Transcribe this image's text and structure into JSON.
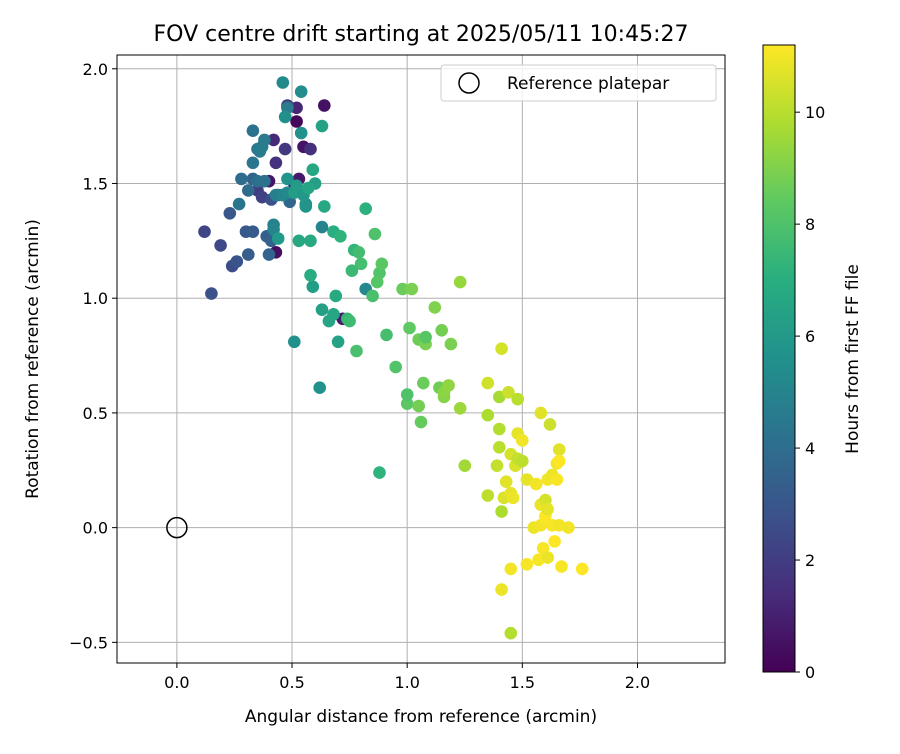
{
  "chart_data": {
    "type": "scatter",
    "title": "FOV centre drift starting at 2025/05/11 10:45:27",
    "xlabel": "Angular distance from reference (arcmin)",
    "ylabel": "Rotation from reference (arcmin)",
    "xlim": [
      -0.26,
      2.38
    ],
    "ylim": [
      -0.59,
      2.06
    ],
    "xticks": [
      "0.0",
      "0.5",
      "1.0",
      "1.5",
      "2.0"
    ],
    "yticks": [
      "−0.5",
      "0.0",
      "0.5",
      "1.0",
      "1.5",
      "2.0"
    ],
    "grid": true,
    "legend": {
      "position": "top-right",
      "entries": [
        "Reference platepar"
      ]
    },
    "reference_point": {
      "x": 0.0,
      "y": 0.0
    },
    "colorbar": {
      "label": "Hours from first FF file",
      "colormap": "viridis",
      "range": [
        0,
        11.2
      ],
      "ticks": [
        "0",
        "2",
        "4",
        "6",
        "8",
        "10"
      ]
    },
    "colormap_stops": [
      "#440154",
      "#472d7b",
      "#3b528b",
      "#2c728e",
      "#21918c",
      "#28ae80",
      "#5ec962",
      "#addc30",
      "#fde725"
    ],
    "series": [
      {
        "points": [
          {
            "x": 0.52,
            "y": 1.77,
            "h": 0.2
          },
          {
            "x": 0.64,
            "y": 1.84,
            "h": 0.5
          },
          {
            "x": 0.51,
            "y": 1.5,
            "h": 0.3
          },
          {
            "x": 0.53,
            "y": 1.52,
            "h": 0.8
          },
          {
            "x": 0.55,
            "y": 1.66,
            "h": 0.6
          },
          {
            "x": 0.46,
            "y": 1.45,
            "h": 1.0
          },
          {
            "x": 0.52,
            "y": 1.83,
            "h": 1.2
          },
          {
            "x": 0.4,
            "y": 1.51,
            "h": 0.7
          },
          {
            "x": 0.43,
            "y": 1.2,
            "h": 0.4
          },
          {
            "x": 0.72,
            "y": 0.91,
            "h": 0.9
          },
          {
            "x": 0.58,
            "y": 1.65,
            "h": 1.5
          },
          {
            "x": 0.47,
            "y": 1.65,
            "h": 1.8
          },
          {
            "x": 0.43,
            "y": 1.59,
            "h": 1.6
          },
          {
            "x": 0.35,
            "y": 1.47,
            "h": 2.0
          },
          {
            "x": 0.42,
            "y": 1.69,
            "h": 1.3
          },
          {
            "x": 0.37,
            "y": 1.44,
            "h": 2.2
          },
          {
            "x": 0.48,
            "y": 1.84,
            "h": 2.0
          },
          {
            "x": 0.12,
            "y": 1.29,
            "h": 2.3
          },
          {
            "x": 0.24,
            "y": 1.14,
            "h": 2.6
          },
          {
            "x": 0.19,
            "y": 1.23,
            "h": 2.5
          },
          {
            "x": 0.15,
            "y": 1.02,
            "h": 2.8
          },
          {
            "x": 0.26,
            "y": 1.16,
            "h": 2.9
          },
          {
            "x": 0.3,
            "y": 1.29,
            "h": 3.1
          },
          {
            "x": 0.23,
            "y": 1.37,
            "h": 3.0
          },
          {
            "x": 0.33,
            "y": 1.29,
            "h": 3.2
          },
          {
            "x": 0.39,
            "y": 1.27,
            "h": 3.4
          },
          {
            "x": 0.41,
            "y": 1.25,
            "h": 3.5
          },
          {
            "x": 0.31,
            "y": 1.19,
            "h": 3.3
          },
          {
            "x": 0.4,
            "y": 1.19,
            "h": 3.6
          },
          {
            "x": 0.44,
            "y": 1.45,
            "h": 3.8
          },
          {
            "x": 0.41,
            "y": 1.43,
            "h": 2.7
          },
          {
            "x": 0.49,
            "y": 1.42,
            "h": 3.7
          },
          {
            "x": 0.31,
            "y": 1.47,
            "h": 3.9
          },
          {
            "x": 0.33,
            "y": 1.52,
            "h": 3.6
          },
          {
            "x": 0.35,
            "y": 1.51,
            "h": 4.1
          },
          {
            "x": 0.38,
            "y": 1.51,
            "h": 4.2
          },
          {
            "x": 0.28,
            "y": 1.52,
            "h": 4.0
          },
          {
            "x": 0.27,
            "y": 1.41,
            "h": 4.3
          },
          {
            "x": 0.33,
            "y": 1.59,
            "h": 4.4
          },
          {
            "x": 0.35,
            "y": 1.65,
            "h": 4.5
          },
          {
            "x": 0.33,
            "y": 1.73,
            "h": 4.2
          },
          {
            "x": 0.36,
            "y": 1.64,
            "h": 4.6
          },
          {
            "x": 0.37,
            "y": 1.66,
            "h": 4.7
          },
          {
            "x": 0.38,
            "y": 1.69,
            "h": 4.6
          },
          {
            "x": 0.43,
            "y": 1.45,
            "h": 4.8
          },
          {
            "x": 0.42,
            "y": 1.32,
            "h": 4.9
          },
          {
            "x": 0.42,
            "y": 1.3,
            "h": 5.0
          },
          {
            "x": 0.46,
            "y": 1.45,
            "h": 5.1
          },
          {
            "x": 0.48,
            "y": 1.46,
            "h": 5.2
          },
          {
            "x": 0.48,
            "y": 1.83,
            "h": 4.6
          },
          {
            "x": 0.46,
            "y": 1.94,
            "h": 5.3
          },
          {
            "x": 0.54,
            "y": 1.9,
            "h": 5.4
          },
          {
            "x": 0.47,
            "y": 1.79,
            "h": 5.5
          },
          {
            "x": 0.54,
            "y": 1.72,
            "h": 5.6
          },
          {
            "x": 0.56,
            "y": 1.41,
            "h": 5.4
          },
          {
            "x": 0.48,
            "y": 1.52,
            "h": 5.7
          },
          {
            "x": 0.44,
            "y": 1.26,
            "h": 6.0
          },
          {
            "x": 0.52,
            "y": 1.49,
            "h": 6.1
          },
          {
            "x": 0.51,
            "y": 1.46,
            "h": 6.2
          },
          {
            "x": 0.55,
            "y": 1.45,
            "h": 5.9
          },
          {
            "x": 0.56,
            "y": 1.4,
            "h": 5.8
          },
          {
            "x": 0.6,
            "y": 1.5,
            "h": 6.3
          },
          {
            "x": 0.57,
            "y": 1.48,
            "h": 6.5
          },
          {
            "x": 0.59,
            "y": 1.56,
            "h": 6.6
          },
          {
            "x": 0.63,
            "y": 1.75,
            "h": 6.4
          },
          {
            "x": 0.59,
            "y": 1.05,
            "h": 6.2
          },
          {
            "x": 0.53,
            "y": 1.25,
            "h": 6.7
          },
          {
            "x": 0.58,
            "y": 1.25,
            "h": 6.8
          },
          {
            "x": 0.58,
            "y": 1.1,
            "h": 6.9
          },
          {
            "x": 0.64,
            "y": 1.4,
            "h": 6.7
          },
          {
            "x": 0.68,
            "y": 1.29,
            "h": 7.0
          },
          {
            "x": 0.63,
            "y": 1.31,
            "h": 5.0
          },
          {
            "x": 0.51,
            "y": 0.81,
            "h": 5.6
          },
          {
            "x": 0.62,
            "y": 0.61,
            "h": 5.7
          },
          {
            "x": 0.63,
            "y": 0.95,
            "h": 6.3
          },
          {
            "x": 0.66,
            "y": 0.9,
            "h": 6.5
          },
          {
            "x": 0.68,
            "y": 0.93,
            "h": 6.6
          },
          {
            "x": 0.7,
            "y": 0.81,
            "h": 6.4
          },
          {
            "x": 0.69,
            "y": 1.01,
            "h": 6.8
          },
          {
            "x": 0.71,
            "y": 1.27,
            "h": 7.2
          },
          {
            "x": 0.74,
            "y": 0.91,
            "h": 7.4
          },
          {
            "x": 0.75,
            "y": 0.9,
            "h": 7.6
          },
          {
            "x": 0.76,
            "y": 1.12,
            "h": 7.5
          },
          {
            "x": 0.77,
            "y": 1.21,
            "h": 7.3
          },
          {
            "x": 0.79,
            "y": 1.2,
            "h": 7.7
          },
          {
            "x": 0.8,
            "y": 1.15,
            "h": 7.8
          },
          {
            "x": 0.78,
            "y": 0.77,
            "h": 7.9
          },
          {
            "x": 0.82,
            "y": 1.04,
            "h": 5.2
          },
          {
            "x": 0.82,
            "y": 1.39,
            "h": 7.1
          },
          {
            "x": 0.85,
            "y": 1.01,
            "h": 7.9
          },
          {
            "x": 0.86,
            "y": 1.28,
            "h": 8.0
          },
          {
            "x": 0.88,
            "y": 1.11,
            "h": 8.1
          },
          {
            "x": 0.87,
            "y": 1.07,
            "h": 8.2
          },
          {
            "x": 0.89,
            "y": 1.15,
            "h": 8.3
          },
          {
            "x": 0.88,
            "y": 0.24,
            "h": 7.2
          },
          {
            "x": 0.91,
            "y": 0.84,
            "h": 7.8
          },
          {
            "x": 0.95,
            "y": 0.7,
            "h": 8.1
          },
          {
            "x": 0.98,
            "y": 1.04,
            "h": 8.6
          },
          {
            "x": 1.0,
            "y": 0.54,
            "h": 8.3
          },
          {
            "x": 1.0,
            "y": 0.58,
            "h": 8.0
          },
          {
            "x": 1.01,
            "y": 0.87,
            "h": 8.4
          },
          {
            "x": 1.02,
            "y": 1.04,
            "h": 8.9
          },
          {
            "x": 1.05,
            "y": 0.82,
            "h": 8.7
          },
          {
            "x": 1.05,
            "y": 0.53,
            "h": 8.8
          },
          {
            "x": 1.06,
            "y": 0.46,
            "h": 8.5
          },
          {
            "x": 1.07,
            "y": 0.63,
            "h": 8.6
          },
          {
            "x": 1.08,
            "y": 0.8,
            "h": 8.9
          },
          {
            "x": 1.08,
            "y": 0.83,
            "h": 8.2
          },
          {
            "x": 1.12,
            "y": 0.96,
            "h": 9.0
          },
          {
            "x": 1.14,
            "y": 0.61,
            "h": 8.7
          },
          {
            "x": 1.15,
            "y": 0.86,
            "h": 8.8
          },
          {
            "x": 1.16,
            "y": 0.57,
            "h": 9.1
          },
          {
            "x": 1.16,
            "y": 0.59,
            "h": 9.2
          },
          {
            "x": 1.18,
            "y": 0.62,
            "h": 9.3
          },
          {
            "x": 1.19,
            "y": 0.8,
            "h": 8.9
          },
          {
            "x": 1.23,
            "y": 0.52,
            "h": 9.5
          },
          {
            "x": 1.23,
            "y": 1.07,
            "h": 9.4
          },
          {
            "x": 1.25,
            "y": 0.27,
            "h": 9.6
          },
          {
            "x": 1.35,
            "y": 0.49,
            "h": 9.8
          },
          {
            "x": 1.35,
            "y": 0.63,
            "h": 10.4
          },
          {
            "x": 1.35,
            "y": 0.14,
            "h": 10.1
          },
          {
            "x": 1.39,
            "y": 0.27,
            "h": 10.2
          },
          {
            "x": 1.4,
            "y": 0.57,
            "h": 9.7
          },
          {
            "x": 1.4,
            "y": 0.35,
            "h": 10.0
          },
          {
            "x": 1.4,
            "y": 0.43,
            "h": 9.9
          },
          {
            "x": 1.41,
            "y": 0.07,
            "h": 9.8
          },
          {
            "x": 1.41,
            "y": 0.78,
            "h": 10.5
          },
          {
            "x": 1.41,
            "y": -0.27,
            "h": 10.9
          },
          {
            "x": 1.42,
            "y": 0.13,
            "h": 10.6
          },
          {
            "x": 1.43,
            "y": 0.2,
            "h": 10.7
          },
          {
            "x": 1.44,
            "y": 0.59,
            "h": 10.3
          },
          {
            "x": 1.45,
            "y": 0.15,
            "h": 10.8
          },
          {
            "x": 1.45,
            "y": 0.32,
            "h": 10.5
          },
          {
            "x": 1.45,
            "y": -0.18,
            "h": 11.0
          },
          {
            "x": 1.45,
            "y": -0.46,
            "h": 9.9
          },
          {
            "x": 1.46,
            "y": 0.13,
            "h": 10.9
          },
          {
            "x": 1.47,
            "y": 0.27,
            "h": 10.6
          },
          {
            "x": 1.48,
            "y": 0.3,
            "h": 10.2
          },
          {
            "x": 1.48,
            "y": 0.56,
            "h": 10.0
          },
          {
            "x": 1.48,
            "y": 0.41,
            "h": 10.8
          },
          {
            "x": 1.5,
            "y": 0.38,
            "h": 11.0
          },
          {
            "x": 1.5,
            "y": 0.29,
            "h": 10.1
          },
          {
            "x": 1.52,
            "y": 0.21,
            "h": 10.8
          },
          {
            "x": 1.52,
            "y": -0.16,
            "h": 11.1
          },
          {
            "x": 1.55,
            "y": 0.0,
            "h": 10.9
          },
          {
            "x": 1.56,
            "y": 0.19,
            "h": 11.0
          },
          {
            "x": 1.57,
            "y": -0.14,
            "h": 11.1
          },
          {
            "x": 1.58,
            "y": 0.1,
            "h": 10.9
          },
          {
            "x": 1.58,
            "y": 0.5,
            "h": 10.7
          },
          {
            "x": 1.58,
            "y": 0.01,
            "h": 11.0
          },
          {
            "x": 1.59,
            "y": -0.09,
            "h": 11.1
          },
          {
            "x": 1.6,
            "y": 0.05,
            "h": 11.2
          },
          {
            "x": 1.6,
            "y": 0.12,
            "h": 10.5
          },
          {
            "x": 1.61,
            "y": 0.08,
            "h": 10.8
          },
          {
            "x": 1.61,
            "y": -0.13,
            "h": 10.9
          },
          {
            "x": 1.61,
            "y": 0.21,
            "h": 11.0
          },
          {
            "x": 1.62,
            "y": 0.45,
            "h": 10.3
          },
          {
            "x": 1.63,
            "y": 0.23,
            "h": 10.9
          },
          {
            "x": 1.63,
            "y": 0.01,
            "h": 11.1
          },
          {
            "x": 1.64,
            "y": -0.06,
            "h": 11.2
          },
          {
            "x": 1.65,
            "y": 0.28,
            "h": 11.0
          },
          {
            "x": 1.65,
            "y": 0.21,
            "h": 11.1
          },
          {
            "x": 1.66,
            "y": 0.34,
            "h": 10.7
          },
          {
            "x": 1.66,
            "y": 0.01,
            "h": 11.0
          },
          {
            "x": 1.66,
            "y": 0.29,
            "h": 11.2
          },
          {
            "x": 1.67,
            "y": -0.17,
            "h": 11.1
          },
          {
            "x": 1.7,
            "y": 0.0,
            "h": 11.0
          },
          {
            "x": 1.76,
            "y": -0.18,
            "h": 11.2
          }
        ]
      }
    ]
  }
}
